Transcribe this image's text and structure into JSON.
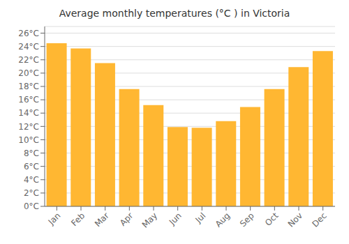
{
  "chart_data": {
    "type": "bar",
    "title": "Average monthly temperatures (°C ) in Victoria",
    "categories": [
      "Jan",
      "Feb",
      "Mar",
      "Apr",
      "May",
      "Jun",
      "Jul",
      "Aug",
      "Sep",
      "Oct",
      "Nov",
      "Dec"
    ],
    "values": [
      24.5,
      23.7,
      21.5,
      17.6,
      15.2,
      11.9,
      11.8,
      12.8,
      14.9,
      17.6,
      20.9,
      23.3
    ],
    "color": "#FFB732",
    "ylim": [
      0,
      27
    ],
    "yticks": [
      {
        "value": 0,
        "label": "0°C"
      },
      {
        "value": 2,
        "label": "2°C"
      },
      {
        "value": 4,
        "label": "4°C"
      },
      {
        "value": 6,
        "label": "6°C"
      },
      {
        "value": 8,
        "label": "8°C"
      },
      {
        "value": 10,
        "label": "10°C"
      },
      {
        "value": 12,
        "label": "12°C"
      },
      {
        "value": 14,
        "label": "14°C"
      },
      {
        "value": 16,
        "label": "16°C"
      },
      {
        "value": 18,
        "label": "18°C"
      },
      {
        "value": 20,
        "label": "20°C"
      },
      {
        "value": 22,
        "label": "22°C"
      },
      {
        "value": 24,
        "label": "24°C"
      },
      {
        "value": 26,
        "label": "26°C"
      }
    ],
    "grid": true
  }
}
